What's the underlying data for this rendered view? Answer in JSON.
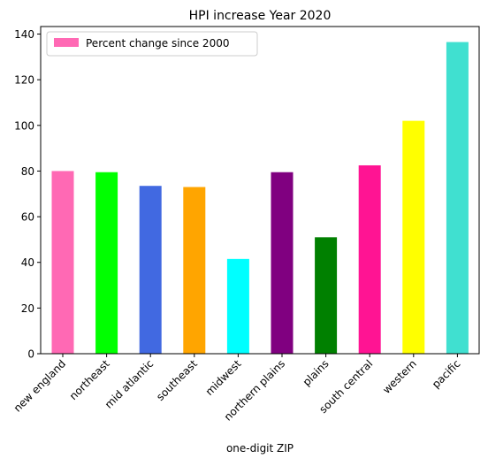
{
  "chart_data": {
    "type": "bar",
    "title": "HPI increase Year 2020",
    "xlabel": "one-digit ZIP",
    "ylabel": "",
    "categories": [
      "new england",
      "northeast",
      "mid atlantic",
      "southeast",
      "midwest",
      "northern plains",
      "plains",
      "south central",
      "western",
      "pacific"
    ],
    "series": [
      {
        "name": "Percent change since 2000",
        "values": [
          80.0,
          79.5,
          73.5,
          73.0,
          41.5,
          79.5,
          51.0,
          82.5,
          102.0,
          136.5
        ],
        "colors": [
          "#ff69b4",
          "#00ff00",
          "#4169e1",
          "#ffa500",
          "#00ffff",
          "#800080",
          "#008000",
          "#ff1493",
          "#ffff00",
          "#40e0d0"
        ]
      }
    ],
    "ylim": [
      0,
      143.3
    ],
    "yticks": [
      0,
      20,
      40,
      60,
      80,
      100,
      120,
      140
    ],
    "ytick_labels": [
      "0",
      "20",
      "40",
      "60",
      "80",
      "100",
      "120",
      "140"
    ],
    "grid": false,
    "legend": {
      "position": "top-left",
      "entries": [
        "Percent change since 2000"
      ],
      "swatch_color": "#ff69b4"
    }
  }
}
